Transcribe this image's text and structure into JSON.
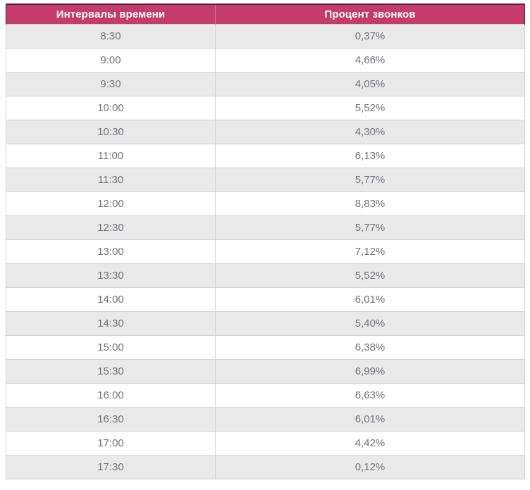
{
  "table": {
    "columns": [
      "Интервалы времени",
      "Процент звонков"
    ],
    "rows": [
      [
        "8:30",
        "0,37%"
      ],
      [
        "9:00",
        "4,66%"
      ],
      [
        "9:30",
        "4,05%"
      ],
      [
        "10:00",
        "5,52%"
      ],
      [
        "10:30",
        "4,30%"
      ],
      [
        "11:00",
        "6,13%"
      ],
      [
        "11:30",
        "5,77%"
      ],
      [
        "12:00",
        "8,83%"
      ],
      [
        "12:30",
        "5,77%"
      ],
      [
        "13:00",
        "7,12%"
      ],
      [
        "13:30",
        "5,52%"
      ],
      [
        "14:00",
        "6,01%"
      ],
      [
        "14:30",
        "5,40%"
      ],
      [
        "15:00",
        "6,38%"
      ],
      [
        "15:30",
        "6,99%"
      ],
      [
        "16:00",
        "6,63%"
      ],
      [
        "16:30",
        "6,01%"
      ],
      [
        "17:00",
        "4,42%"
      ],
      [
        "17:30",
        "0,12%"
      ]
    ]
  },
  "chart_data": {
    "type": "table",
    "title": "",
    "columns": [
      "Интервалы времени",
      "Процент звонков"
    ],
    "categories": [
      "8:30",
      "9:00",
      "9:30",
      "10:00",
      "10:30",
      "11:00",
      "11:30",
      "12:00",
      "12:30",
      "13:00",
      "13:30",
      "14:00",
      "14:30",
      "15:00",
      "15:30",
      "16:00",
      "16:30",
      "17:00",
      "17:30"
    ],
    "values": [
      0.37,
      4.66,
      4.05,
      5.52,
      4.3,
      6.13,
      5.77,
      8.83,
      5.77,
      7.12,
      5.52,
      6.01,
      5.4,
      6.38,
      6.99,
      6.63,
      6.01,
      4.42,
      0.12
    ],
    "value_unit": "%",
    "decimal_separator": ","
  },
  "colors": {
    "header_bg": "#c53b6c",
    "header_text": "#ffffff",
    "header_border": "#521e3a",
    "header_separator": "#d96c93",
    "row_alt_bg": "#e9e9e9",
    "row_bg": "#ffffff",
    "cell_text": "#6f747c",
    "grid_border": "#d2d2d2"
  }
}
